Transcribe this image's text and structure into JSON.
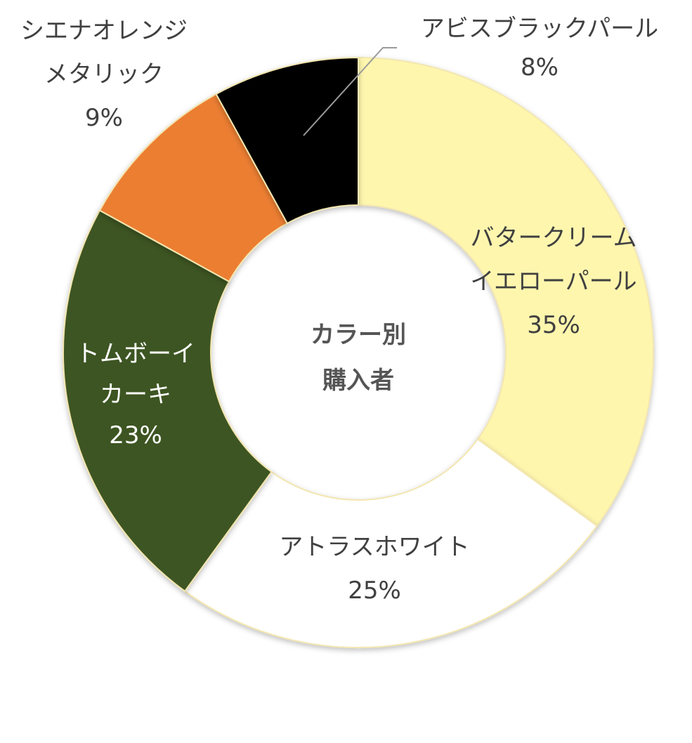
{
  "chart_data": {
    "type": "pie",
    "subtype": "donut",
    "center_label": [
      "カラー別",
      "購入者"
    ],
    "categories": [
      "バタークリームイエローパール",
      "アトラスホワイト",
      "トムボーイカーキ",
      "シエナオレンジメタリック",
      "アビスブラックパール"
    ],
    "values": [
      35,
      25,
      23,
      9,
      8
    ],
    "unit": "%",
    "slices": [
      {
        "name_lines": [
          "バタークリーム",
          "イエローパール"
        ],
        "value": 35,
        "value_label": "35%",
        "color": "#fff6ae",
        "label_color": "#404040"
      },
      {
        "name_lines": [
          "アトラスホワイト"
        ],
        "value": 25,
        "value_label": "25%",
        "color": "#ffffff",
        "label_color": "#404040"
      },
      {
        "name_lines": [
          "トムボーイ",
          "カーキ"
        ],
        "value": 23,
        "value_label": "23%",
        "color": "#3d5522",
        "label_color": "#ffffff"
      },
      {
        "name_lines": [
          "シエナオレンジ",
          "メタリック"
        ],
        "value": 9,
        "value_label": "9%",
        "color": "#ec7e32",
        "label_color": "#404040"
      },
      {
        "name_lines": [
          "アビスブラックパール"
        ],
        "value": 8,
        "value_label": "8%",
        "color": "#000000",
        "label_color": "#404040"
      }
    ],
    "legend": "none"
  }
}
